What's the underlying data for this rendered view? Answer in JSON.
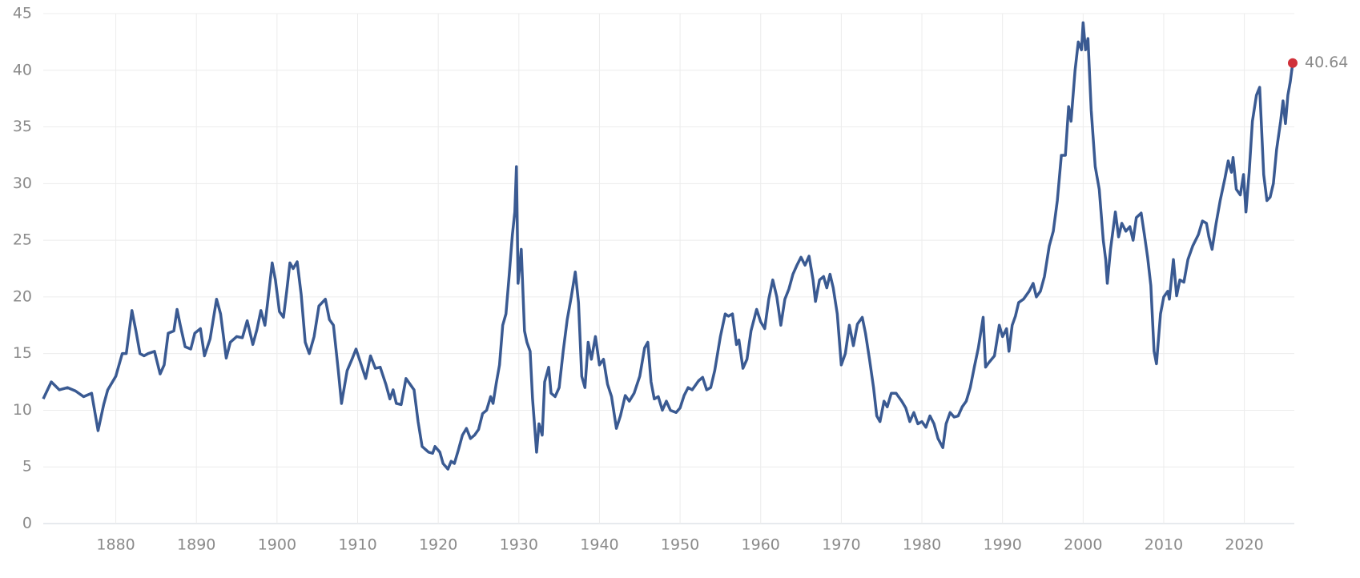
{
  "chart_data": {
    "type": "line",
    "x": [
      1871,
      1872,
      1873,
      1874,
      1875,
      1876,
      1877,
      1877.8,
      1878.5,
      1879,
      1880,
      1880.8,
      1881.3,
      1882,
      1882.5,
      1883,
      1883.5,
      1884,
      1884.8,
      1885.5,
      1886,
      1886.5,
      1887.2,
      1887.6,
      1888,
      1888.6,
      1889.3,
      1889.8,
      1890.5,
      1891,
      1891.7,
      1892.5,
      1893,
      1893.7,
      1894.2,
      1895,
      1895.7,
      1896.3,
      1897,
      1897.5,
      1898,
      1898.5,
      1899,
      1899.4,
      1899.8,
      1900.3,
      1900.8,
      1901.2,
      1901.6,
      1902,
      1902.5,
      1903,
      1903.5,
      1904,
      1904.6,
      1905.2,
      1906,
      1906.5,
      1907,
      1907.6,
      1908,
      1908.7,
      1909.3,
      1909.8,
      1910.5,
      1911,
      1911.6,
      1912.2,
      1912.8,
      1913.5,
      1914,
      1914.4,
      1914.8,
      1915.4,
      1916,
      1916.6,
      1917,
      1917.5,
      1918,
      1918.8,
      1919.3,
      1919.6,
      1920.2,
      1920.6,
      1921.2,
      1921.6,
      1922,
      1922.5,
      1923,
      1923.5,
      1924,
      1924.5,
      1925,
      1925.5,
      1926,
      1926.5,
      1926.8,
      1927.2,
      1927.6,
      1928,
      1928.4,
      1928.8,
      1929.2,
      1929.5,
      1929.7,
      1929.9,
      1930.3,
      1930.7,
      1931,
      1931.4,
      1931.7,
      1932.2,
      1932.5,
      1932.9,
      1933.2,
      1933.7,
      1934,
      1934.5,
      1935,
      1935.5,
      1936,
      1936.5,
      1937,
      1937.4,
      1937.8,
      1938.2,
      1938.6,
      1939,
      1939.5,
      1940,
      1940.5,
      1941,
      1941.5,
      1942.1,
      1942.6,
      1943.2,
      1943.7,
      1944.3,
      1945,
      1945.6,
      1946,
      1946.4,
      1946.8,
      1947.3,
      1947.8,
      1948.3,
      1948.8,
      1949.5,
      1950,
      1950.5,
      1951,
      1951.5,
      1952.3,
      1952.8,
      1953.3,
      1953.8,
      1954.3,
      1955,
      1955.6,
      1956,
      1956.5,
      1957,
      1957.3,
      1957.8,
      1958.3,
      1958.8,
      1959.5,
      1960,
      1960.5,
      1961,
      1961.5,
      1962,
      1962.5,
      1963,
      1963.5,
      1964,
      1964.5,
      1965,
      1965.5,
      1966,
      1966.5,
      1966.8,
      1967.3,
      1967.8,
      1968.2,
      1968.6,
      1969,
      1969.5,
      1970,
      1970.5,
      1971,
      1971.5,
      1972,
      1972.6,
      1973,
      1973.5,
      1974,
      1974.4,
      1974.8,
      1975.3,
      1975.7,
      1976.2,
      1976.8,
      1977.5,
      1978,
      1978.5,
      1979,
      1979.5,
      1980,
      1980.5,
      1981,
      1981.5,
      1982,
      1982.6,
      1983,
      1983.5,
      1984,
      1984.5,
      1985,
      1985.5,
      1986,
      1986.5,
      1987,
      1987.6,
      1987.9,
      1988.3,
      1989,
      1989.6,
      1990,
      1990.5,
      1990.8,
      1991.2,
      1991.6,
      1992,
      1992.6,
      1993.3,
      1993.8,
      1994.2,
      1994.7,
      1995.2,
      1995.8,
      1996.3,
      1996.8,
      1997.3,
      1997.8,
      1998.2,
      1998.5,
      1999,
      1999.4,
      1999.8,
      2000,
      2000.3,
      2000.6,
      2001,
      2001.5,
      2002,
      2002.5,
      2002.8,
      2003,
      2003.4,
      2004,
      2004.4,
      2004.8,
      2005.3,
      2005.8,
      2006.2,
      2006.6,
      2007.2,
      2007.6,
      2008,
      2008.4,
      2008.8,
      2009.1,
      2009.6,
      2010,
      2010.5,
      2010.7,
      2011.2,
      2011.6,
      2012,
      2012.5,
      2013,
      2013.6,
      2014.3,
      2014.8,
      2015.3,
      2015.6,
      2016,
      2016.5,
      2017,
      2017.6,
      2018,
      2018.4,
      2018.6,
      2019,
      2019.5,
      2019.9,
      2020.2,
      2020.6,
      2021,
      2021.5,
      2021.9,
      2022.4,
      2022.8,
      2023.2,
      2023.6,
      2024,
      2024.5,
      2024.8,
      2025.1,
      2025.4,
      2025.7,
      2026
    ],
    "series": [
      {
        "color": "#3a5a92",
        "values": [
          11,
          12.5,
          11.8,
          12,
          11.7,
          11.2,
          11.5,
          8.2,
          10.5,
          11.8,
          13,
          15,
          15,
          18.8,
          17,
          15,
          14.8,
          15,
          15.2,
          13.2,
          14,
          16.8,
          17,
          18.9,
          17.5,
          15.6,
          15.4,
          16.8,
          17.2,
          14.8,
          16.3,
          19.8,
          18.5,
          14.6,
          16,
          16.5,
          16.4,
          17.9,
          15.8,
          17.1,
          18.8,
          17.5,
          20.5,
          23,
          21.5,
          18.7,
          18.2,
          20.5,
          23,
          22.5,
          23.1,
          20.2,
          16,
          15,
          16.5,
          19.2,
          19.8,
          18,
          17.5,
          13.5,
          10.6,
          13.5,
          14.5,
          15.4,
          13.9,
          12.8,
          14.8,
          13.7,
          13.8,
          12.3,
          11,
          11.8,
          10.6,
          10.5,
          12.8,
          12.2,
          11.8,
          9,
          6.8,
          6.3,
          6.2,
          6.8,
          6.3,
          5.3,
          4.8,
          5.5,
          5.3,
          6.5,
          7.8,
          8.4,
          7.5,
          7.8,
          8.3,
          9.7,
          10,
          11.2,
          10.6,
          12.4,
          14,
          17.5,
          18.5,
          21.9,
          25.5,
          27.5,
          31.5,
          21.2,
          24.2,
          17,
          16,
          15.2,
          11,
          6.3,
          8.8,
          7.8,
          12.5,
          13.8,
          11.5,
          11.2,
          12,
          15.2,
          18,
          20,
          22.2,
          19.5,
          13,
          12,
          16,
          14.5,
          16.5,
          14,
          14.5,
          12.3,
          11.2,
          8.4,
          9.5,
          11.3,
          10.8,
          11.5,
          13,
          15.5,
          16,
          12.5,
          11,
          11.2,
          10,
          10.8,
          10,
          9.8,
          10.2,
          11.3,
          12,
          11.8,
          12.6,
          12.9,
          11.8,
          12,
          13.5,
          16.5,
          18.5,
          18.3,
          18.5,
          15.8,
          16.2,
          13.7,
          14.5,
          17,
          18.9,
          17.8,
          17.2,
          19.8,
          21.5,
          20,
          17.5,
          19.8,
          20.7,
          22,
          22.8,
          23.5,
          22.8,
          23.6,
          21.5,
          19.6,
          21.5,
          21.8,
          20.8,
          22,
          20.8,
          18.5,
          14,
          15,
          17.5,
          15.7,
          17.6,
          18.2,
          16.8,
          14.5,
          12,
          9.5,
          9,
          10.8,
          10.3,
          11.5,
          11.5,
          10.8,
          10.2,
          9,
          9.8,
          8.8,
          9,
          8.5,
          9.5,
          8.8,
          7.5,
          6.7,
          8.8,
          9.8,
          9.4,
          9.5,
          10.3,
          10.8,
          12,
          13.8,
          15.5,
          18.2,
          13.8,
          14.2,
          14.8,
          17.5,
          16.5,
          17.2,
          15.2,
          17.5,
          18.3,
          19.5,
          19.8,
          20.5,
          21.2,
          20,
          20.5,
          21.8,
          24.5,
          25.8,
          28.5,
          32.5,
          32.5,
          36.8,
          35.5,
          40,
          42.5,
          41.8,
          44.2,
          41.8,
          42.8,
          36.5,
          31.5,
          29.5,
          25,
          23.3,
          21.2,
          24.2,
          27.5,
          25.3,
          26.5,
          25.8,
          26.2,
          25,
          27,
          27.4,
          25.5,
          23.5,
          21,
          15.2,
          14.1,
          18.5,
          20,
          20.5,
          19.8,
          23.3,
          20.1,
          21.5,
          21.3,
          23.3,
          24.5,
          25.5,
          26.7,
          26.5,
          25.3,
          24.2,
          26.5,
          28.5,
          30.5,
          32,
          31,
          32.3,
          29.5,
          29,
          30.8,
          27.5,
          31,
          35.5,
          37.8,
          38.5,
          30.8,
          28.5,
          28.8,
          30,
          33,
          35.5,
          37.3,
          35.3,
          37.8,
          39,
          40.64
        ]
      }
    ],
    "highlight_color": "#d0313a",
    "xlim": [
      1871,
      2026.2
    ],
    "xticks": [
      1880,
      1890,
      1900,
      1910,
      1920,
      1930,
      1940,
      1950,
      1960,
      1970,
      1980,
      1990,
      2000,
      2010,
      2020
    ],
    "ylim": [
      0,
      45
    ],
    "yticks": [
      0,
      5,
      10,
      15,
      20,
      25,
      30,
      35,
      40,
      45
    ],
    "grid": true
  }
}
